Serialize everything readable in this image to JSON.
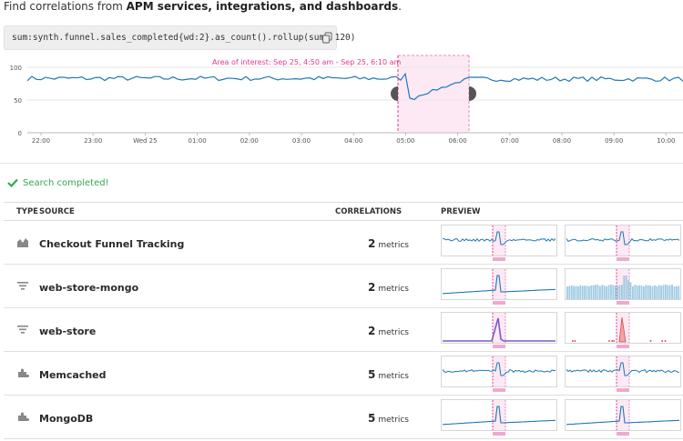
{
  "intro": {
    "prefix": "Find correlations from ",
    "bold": "APM services, integrations, and dashboards",
    "suffix": "."
  },
  "query": {
    "text": "sum:synth.funnel.sales_completed{wd:2}.as_count().rollup(sum, 120)",
    "copy_icon": "copy-icon"
  },
  "main_chart": {
    "type": "line",
    "color": "#1f77b4",
    "y_ticks": [
      "0",
      "50",
      "100"
    ],
    "ylim": [
      0,
      100
    ],
    "x_ticks": [
      "22:00",
      "23:00",
      "Wed 25",
      "01:00",
      "02:00",
      "03:00",
      "04:00",
      "05:00",
      "06:00",
      "07:00",
      "08:00",
      "09:00",
      "10:00"
    ],
    "area_label": "Area of interest: Sep 25, 4:50 am - Sep 25, 6:10 am",
    "highlight_color": "#e1398f"
  },
  "status": {
    "text": "Search completed!",
    "icon": "check-icon",
    "color": "#32a852"
  },
  "table": {
    "headers": {
      "type": "TYPE",
      "source": "SOURCE",
      "correlations": "CORRELATIONS",
      "preview": "PREVIEW"
    },
    "rows": [
      {
        "icon": "dashboard-icon",
        "source": "Checkout Funnel Tracking",
        "count": "2",
        "unit": "metrics",
        "previews": [
          "flat-drop",
          "flat-drop"
        ]
      },
      {
        "icon": "service-icon",
        "source": "web-store-mongo",
        "count": "2",
        "unit": "metrics",
        "previews": [
          "spike-line",
          "bars"
        ]
      },
      {
        "icon": "service-icon",
        "source": "web-store",
        "count": "2",
        "unit": "metrics",
        "previews": [
          "purple-spike",
          "red-spike"
        ]
      },
      {
        "icon": "integration-icon",
        "source": "Memcached",
        "count": "5",
        "unit": "metrics",
        "previews": [
          "flat-drop",
          "flat-drop"
        ]
      },
      {
        "icon": "integration-icon",
        "source": "MongoDB",
        "count": "5",
        "unit": "metrics",
        "previews": [
          "spike-line",
          "spike-line"
        ]
      }
    ]
  }
}
